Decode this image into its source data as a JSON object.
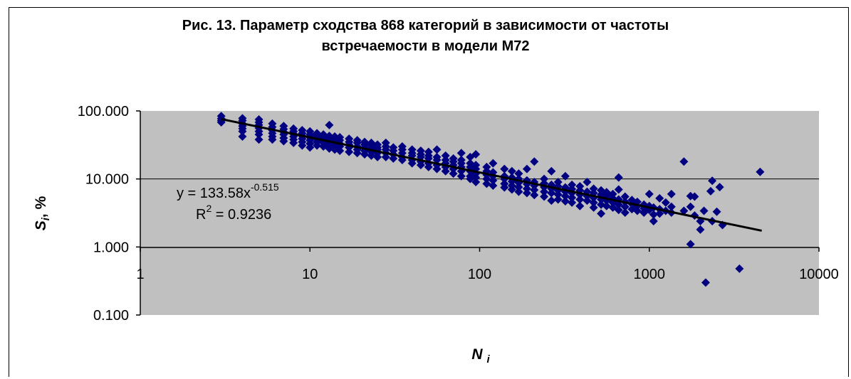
{
  "chart_data": {
    "type": "scatter",
    "title": "Рис. 13.  Параметр сходства 868 категорий в зависимости от частоты\nвстречаемости в модели М72",
    "xlabel": {
      "main": "N",
      "sub": "i"
    },
    "ylabel": {
      "main": "S",
      "sub": "i",
      "suffix": ", %"
    },
    "x_scale": "log",
    "y_scale": "log",
    "xlim": [
      1,
      10000
    ],
    "ylim": [
      0.1,
      100
    ],
    "x_ticks": [
      "1",
      "10",
      "100",
      "1000",
      "10000"
    ],
    "y_ticks": [
      "100.000",
      "10.000",
      "1.000",
      "0.100"
    ],
    "plot_background": "#c0c0c0",
    "marker_color": "#000080",
    "trendline": {
      "type": "power",
      "coefficient": 133.58,
      "exponent": -0.515,
      "x_range": [
        3,
        4600
      ],
      "color": "#000000",
      "equation": {
        "prefix": "y = 133.58x",
        "exponent": "-0.515"
      },
      "r2": {
        "prefix": "R",
        "power": "2",
        "value": " = 0.9236"
      }
    },
    "points": [
      [
        3,
        84
      ],
      [
        3,
        77
      ],
      [
        3,
        72
      ],
      [
        3,
        68
      ],
      [
        4,
        78
      ],
      [
        4,
        72
      ],
      [
        4,
        65
      ],
      [
        4,
        60
      ],
      [
        4,
        55
      ],
      [
        4,
        50
      ],
      [
        4,
        42
      ],
      [
        5,
        75
      ],
      [
        5,
        68
      ],
      [
        5,
        62
      ],
      [
        5,
        56
      ],
      [
        5,
        50
      ],
      [
        5,
        45
      ],
      [
        5,
        38
      ],
      [
        6,
        65
      ],
      [
        6,
        58
      ],
      [
        6,
        52
      ],
      [
        6,
        47
      ],
      [
        6,
        42
      ],
      [
        6,
        38
      ],
      [
        7,
        60
      ],
      [
        7,
        54
      ],
      [
        7,
        49
      ],
      [
        7,
        45
      ],
      [
        7,
        40
      ],
      [
        7,
        36
      ],
      [
        8,
        55
      ],
      [
        8,
        50
      ],
      [
        8,
        46
      ],
      [
        8,
        42
      ],
      [
        8,
        38
      ],
      [
        8,
        34
      ],
      [
        9,
        52
      ],
      [
        9,
        47
      ],
      [
        9,
        43
      ],
      [
        9,
        39
      ],
      [
        9,
        35
      ],
      [
        9,
        31
      ],
      [
        10,
        50
      ],
      [
        10,
        45
      ],
      [
        10,
        41
      ],
      [
        10,
        37
      ],
      [
        10,
        33
      ],
      [
        10,
        29
      ],
      [
        11,
        47
      ],
      [
        11,
        43
      ],
      [
        11,
        39
      ],
      [
        11,
        35
      ],
      [
        11,
        31
      ],
      [
        12,
        45
      ],
      [
        12,
        41
      ],
      [
        12,
        37
      ],
      [
        12,
        34
      ],
      [
        12,
        30
      ],
      [
        13,
        62
      ],
      [
        13,
        43
      ],
      [
        13,
        39
      ],
      [
        13,
        35
      ],
      [
        13,
        32
      ],
      [
        13,
        28
      ],
      [
        14,
        42
      ],
      [
        14,
        38
      ],
      [
        14,
        34
      ],
      [
        14,
        31
      ],
      [
        14,
        27
      ],
      [
        15,
        41
      ],
      [
        15,
        37
      ],
      [
        15,
        33
      ],
      [
        15,
        30
      ],
      [
        15,
        26
      ],
      [
        17,
        39
      ],
      [
        17,
        35
      ],
      [
        17,
        32
      ],
      [
        17,
        29
      ],
      [
        17,
        25
      ],
      [
        19,
        37
      ],
      [
        19,
        34
      ],
      [
        19,
        30
      ],
      [
        19,
        27
      ],
      [
        19,
        24
      ],
      [
        21,
        35
      ],
      [
        21,
        32
      ],
      [
        21,
        29
      ],
      [
        21,
        26
      ],
      [
        21,
        23
      ],
      [
        23,
        34
      ],
      [
        23,
        31
      ],
      [
        23,
        28
      ],
      [
        23,
        25
      ],
      [
        23,
        22
      ],
      [
        25,
        32
      ],
      [
        25,
        29
      ],
      [
        25,
        27
      ],
      [
        25,
        24
      ],
      [
        25,
        21
      ],
      [
        28,
        34
      ],
      [
        28,
        30
      ],
      [
        28,
        27
      ],
      [
        28,
        24
      ],
      [
        28,
        21
      ],
      [
        31,
        29
      ],
      [
        31,
        26
      ],
      [
        31,
        23
      ],
      [
        31,
        20
      ],
      [
        35,
        30
      ],
      [
        35,
        27
      ],
      [
        35,
        24
      ],
      [
        35,
        21
      ],
      [
        35,
        19
      ],
      [
        40,
        27
      ],
      [
        40,
        24
      ],
      [
        40,
        22
      ],
      [
        40,
        19
      ],
      [
        40,
        17
      ],
      [
        45,
        26
      ],
      [
        45,
        23
      ],
      [
        45,
        21
      ],
      [
        45,
        18
      ],
      [
        45,
        16
      ],
      [
        50,
        25
      ],
      [
        50,
        22
      ],
      [
        50,
        20
      ],
      [
        50,
        17
      ],
      [
        50,
        15
      ],
      [
        56,
        27
      ],
      [
        56,
        21
      ],
      [
        56,
        19
      ],
      [
        56,
        16
      ],
      [
        56,
        14
      ],
      [
        63,
        22
      ],
      [
        63,
        19
      ],
      [
        63,
        17
      ],
      [
        63,
        15
      ],
      [
        63,
        13
      ],
      [
        70,
        20
      ],
      [
        70,
        18
      ],
      [
        70,
        16
      ],
      [
        70,
        14
      ],
      [
        70,
        12
      ],
      [
        78,
        24
      ],
      [
        78,
        19
      ],
      [
        78,
        17
      ],
      [
        78,
        15
      ],
      [
        78,
        13
      ],
      [
        78,
        11
      ],
      [
        88,
        21
      ],
      [
        88,
        17
      ],
      [
        88,
        15
      ],
      [
        88,
        13
      ],
      [
        88,
        11
      ],
      [
        88,
        10
      ],
      [
        95,
        23
      ],
      [
        95,
        16
      ],
      [
        95,
        14
      ],
      [
        95,
        12
      ],
      [
        95,
        10.5
      ],
      [
        95,
        9
      ],
      [
        110,
        15
      ],
      [
        110,
        13
      ],
      [
        110,
        11.5
      ],
      [
        110,
        10
      ],
      [
        110,
        8.5
      ],
      [
        120,
        17
      ],
      [
        120,
        12.5
      ],
      [
        120,
        11
      ],
      [
        120,
        9.5
      ],
      [
        120,
        8
      ],
      [
        140,
        14
      ],
      [
        140,
        11
      ],
      [
        140,
        10
      ],
      [
        140,
        8.5
      ],
      [
        140,
        7.5
      ],
      [
        155,
        13
      ],
      [
        155,
        10.5
      ],
      [
        155,
        9.2
      ],
      [
        155,
        8
      ],
      [
        155,
        7
      ],
      [
        170,
        12
      ],
      [
        170,
        10
      ],
      [
        170,
        8.8
      ],
      [
        170,
        7.6
      ],
      [
        170,
        6.5
      ],
      [
        190,
        14
      ],
      [
        190,
        9.5
      ],
      [
        190,
        8.4
      ],
      [
        190,
        7.2
      ],
      [
        190,
        6.2
      ],
      [
        210,
        18
      ],
      [
        210,
        9
      ],
      [
        210,
        8
      ],
      [
        210,
        6.9
      ],
      [
        210,
        5.8
      ],
      [
        240,
        10
      ],
      [
        240,
        8.6
      ],
      [
        240,
        7.6
      ],
      [
        240,
        6.5
      ],
      [
        240,
        5.5
      ],
      [
        265,
        13
      ],
      [
        265,
        8.2
      ],
      [
        265,
        7.2
      ],
      [
        265,
        6.2
      ],
      [
        265,
        4.8
      ],
      [
        290,
        9
      ],
      [
        290,
        7.8
      ],
      [
        290,
        6.8
      ],
      [
        290,
        5.9
      ],
      [
        290,
        5
      ],
      [
        320,
        11
      ],
      [
        320,
        7.5
      ],
      [
        320,
        6.5
      ],
      [
        320,
        5.6
      ],
      [
        320,
        4.7
      ],
      [
        350,
        8.2
      ],
      [
        350,
        7.1
      ],
      [
        350,
        6.2
      ],
      [
        350,
        5.3
      ],
      [
        350,
        4.5
      ],
      [
        390,
        7.8
      ],
      [
        390,
        6.8
      ],
      [
        390,
        5.9
      ],
      [
        390,
        5
      ],
      [
        390,
        4
      ],
      [
        430,
        9
      ],
      [
        430,
        6.5
      ],
      [
        430,
        5.6
      ],
      [
        430,
        4.8
      ],
      [
        470,
        7.2
      ],
      [
        470,
        6.2
      ],
      [
        470,
        5.3
      ],
      [
        470,
        4.5
      ],
      [
        470,
        3.8
      ],
      [
        520,
        6.8
      ],
      [
        520,
        5.9
      ],
      [
        520,
        5
      ],
      [
        520,
        4.2
      ],
      [
        520,
        3.1
      ],
      [
        560,
        6.4
      ],
      [
        560,
        5.6
      ],
      [
        560,
        4.8
      ],
      [
        560,
        4
      ],
      [
        610,
        6
      ],
      [
        610,
        5.2
      ],
      [
        610,
        4.5
      ],
      [
        610,
        3.8
      ],
      [
        660,
        10.5
      ],
      [
        660,
        7
      ],
      [
        660,
        5
      ],
      [
        660,
        4.2
      ],
      [
        660,
        3.5
      ],
      [
        720,
        5.5
      ],
      [
        720,
        4.6
      ],
      [
        720,
        3.9
      ],
      [
        720,
        3.2
      ],
      [
        790,
        4.9
      ],
      [
        790,
        4.3
      ],
      [
        790,
        3.6
      ],
      [
        850,
        4.6
      ],
      [
        850,
        4
      ],
      [
        850,
        3.4
      ],
      [
        930,
        4.2
      ],
      [
        930,
        3.7
      ],
      [
        930,
        3.2
      ],
      [
        1000,
        6
      ],
      [
        1000,
        4
      ],
      [
        1000,
        3.5
      ],
      [
        1060,
        3.8
      ],
      [
        1060,
        2.4
      ],
      [
        1060,
        3
      ],
      [
        1150,
        5.2
      ],
      [
        1150,
        3.6
      ],
      [
        1150,
        3.1
      ],
      [
        1250,
        4.5
      ],
      [
        1250,
        3.4
      ],
      [
        1350,
        6
      ],
      [
        1350,
        3.9
      ],
      [
        1350,
        3.2
      ],
      [
        1600,
        18
      ],
      [
        1600,
        3.4
      ],
      [
        1750,
        5.6
      ],
      [
        1750,
        3.9
      ],
      [
        1750,
        1.1
      ],
      [
        1850,
        5.5
      ],
      [
        1850,
        2.9
      ],
      [
        2000,
        1.8
      ],
      [
        2000,
        2.4
      ],
      [
        2100,
        3.4
      ],
      [
        2150,
        0.3
      ],
      [
        2300,
        6.6
      ],
      [
        2350,
        9.4
      ],
      [
        2350,
        2.4
      ],
      [
        2500,
        3.3
      ],
      [
        2600,
        7.6
      ],
      [
        2700,
        2.1
      ],
      [
        3400,
        0.48
      ],
      [
        4500,
        12.7
      ]
    ]
  }
}
